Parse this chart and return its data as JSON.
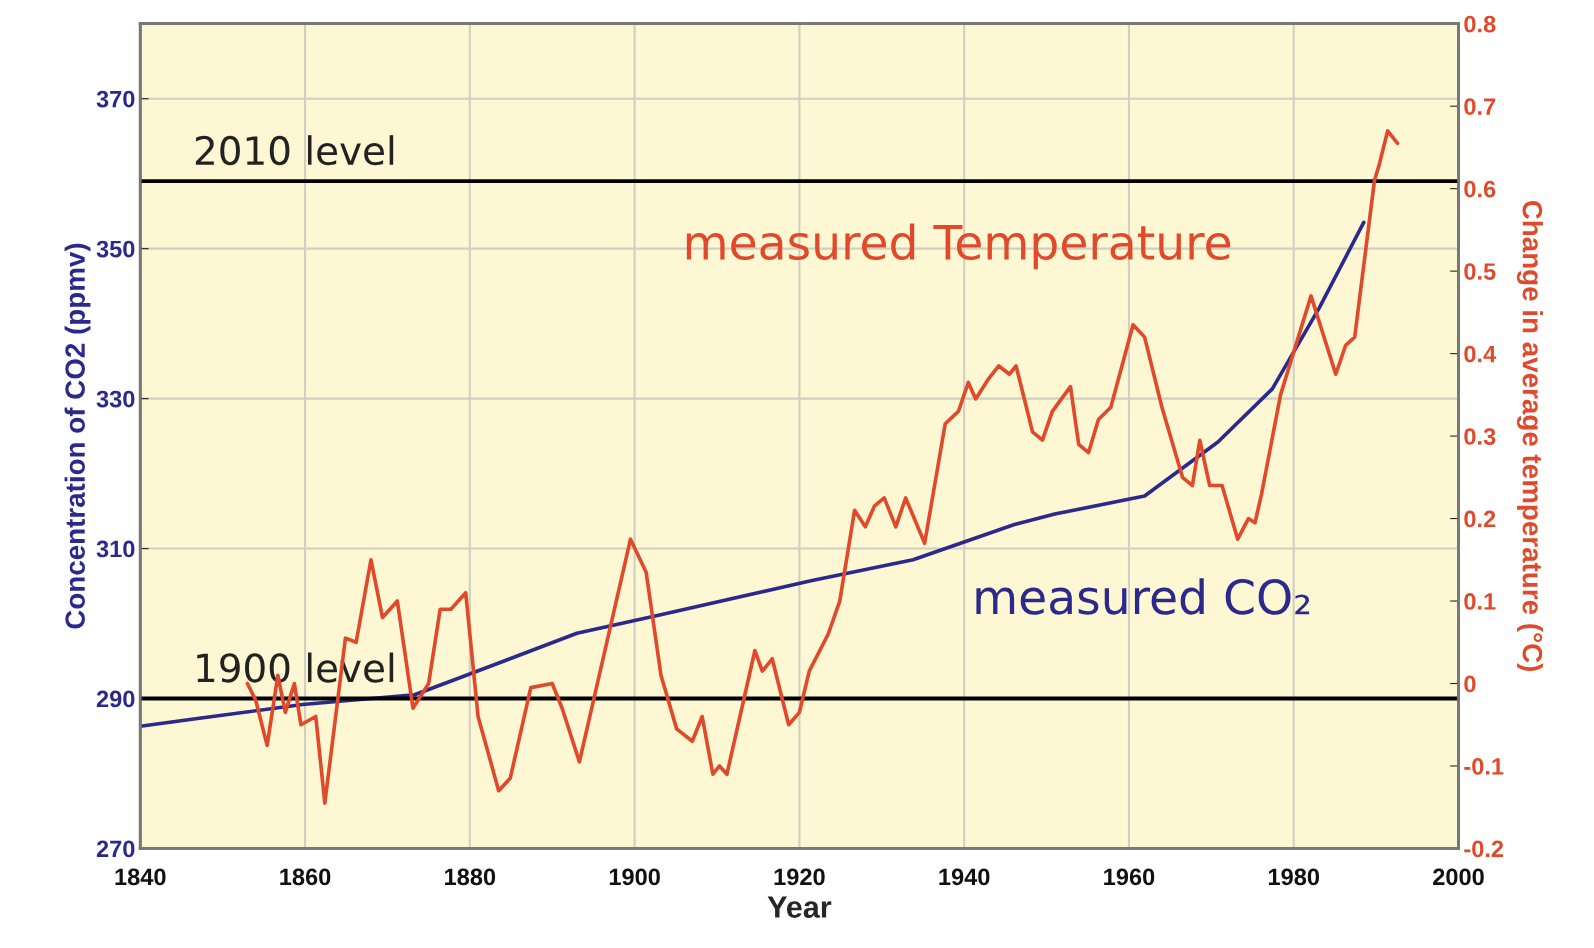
{
  "chart_data": {
    "type": "line",
    "xlabel": "Year",
    "ylabel": "Concentration of CO2 (ppmv)",
    "y2label": "Change in average temperature (°C)",
    "xlim": [
      1840,
      2000
    ],
    "xticks": [
      1840,
      1860,
      1880,
      1900,
      1920,
      1940,
      1960,
      1980,
      2000
    ],
    "ylim": [
      270,
      380
    ],
    "yticks": [
      270,
      290,
      310,
      330,
      350,
      370
    ],
    "y2lim": [
      -0.2,
      0.8
    ],
    "y2ticks": [
      -0.2,
      -0.1,
      0,
      0.1,
      0.2,
      0.3,
      0.4,
      0.5,
      0.6,
      0.7,
      0.8
    ],
    "grid": true,
    "line_style": "solid",
    "marker": "none",
    "series": [
      {
        "name": "measured CO₂",
        "color": "#2b2a8c",
        "x": [
          1840,
          1847.4,
          1859.7,
          1873.3,
          1883.2,
          1893,
          1902.9,
          1921.4,
          1933.8,
          1946.1,
          1951,
          1961.9,
          1970.8,
          1977.4,
          1983.1,
          1988.5
        ],
        "values": [
          286.3,
          287.4,
          289.2,
          290.5,
          294.6,
          298.7,
          301.1,
          305.7,
          308.5,
          313.2,
          314.6,
          317,
          324.2,
          331.3,
          342.1,
          353.5
        ]
      },
      {
        "name": "measured Temperature",
        "color": "#e0492a",
        "axis": "y2",
        "x": [
          1853,
          1854,
          1855.4,
          1856.7,
          1857.6,
          1858.7,
          1859.5,
          1861.3,
          1862.4,
          1864.9,
          1866.2,
          1868,
          1869.4,
          1871.2,
          1873.1,
          1875,
          1876.4,
          1877.7,
          1879.5,
          1881,
          1883.5,
          1884.9,
          1887.4,
          1890,
          1891.2,
          1893.3,
          1899.5,
          1901.4,
          1903.2,
          1905.1,
          1907,
          1908.2,
          1909.5,
          1910.3,
          1911.2,
          1914.6,
          1915.5,
          1916.7,
          1918.7,
          1920,
          1921.2,
          1923.5,
          1924.9,
          1926.7,
          1928,
          1929.1,
          1930.3,
          1931.7,
          1932.9,
          1935.2,
          1937.7,
          1939.3,
          1940.5,
          1941.4,
          1943,
          1944.2,
          1945.5,
          1946.3,
          1948.3,
          1949.5,
          1950.7,
          1952.9,
          1953.9,
          1955.1,
          1956.3,
          1957.8,
          1960.5,
          1961.9,
          1964,
          1966.5,
          1967.7,
          1968.6,
          1969.8,
          1971.3,
          1973.2,
          1974.5,
          1975.3,
          1976.1,
          1978.4,
          1982.1,
          1985.1,
          1986.3,
          1987.4,
          1989.8,
          1990.4,
          1991.4,
          1992.6
        ],
        "values": [
          0.0,
          -0.02,
          -0.075,
          0.01,
          -0.035,
          0.0,
          -0.05,
          -0.04,
          -0.145,
          0.055,
          0.05,
          0.15,
          0.08,
          0.1,
          -0.03,
          0.0,
          0.09,
          0.09,
          0.11,
          -0.04,
          -0.13,
          -0.115,
          -0.005,
          0.0,
          -0.03,
          -0.095,
          0.175,
          0.135,
          0.01,
          -0.055,
          -0.07,
          -0.04,
          -0.11,
          -0.1,
          -0.11,
          0.04,
          0.015,
          0.03,
          -0.05,
          -0.035,
          0.015,
          0.06,
          0.1,
          0.21,
          0.19,
          0.215,
          0.225,
          0.19,
          0.225,
          0.17,
          0.315,
          0.33,
          0.365,
          0.345,
          0.37,
          0.385,
          0.375,
          0.385,
          0.305,
          0.295,
          0.33,
          0.36,
          0.29,
          0.28,
          0.32,
          0.335,
          0.435,
          0.42,
          0.335,
          0.25,
          0.24,
          0.295,
          0.24,
          0.24,
          0.175,
          0.2,
          0.195,
          0.23,
          0.35,
          0.47,
          0.375,
          0.41,
          0.42,
          0.61,
          0.63,
          0.67,
          0.655
        ]
      }
    ],
    "ref_lines": [
      {
        "axis": "y",
        "value": 359,
        "label": "2010 level",
        "color": "#000000"
      },
      {
        "axis": "y",
        "value": 290,
        "label": "1900 level",
        "color": "#000000"
      }
    ]
  }
}
